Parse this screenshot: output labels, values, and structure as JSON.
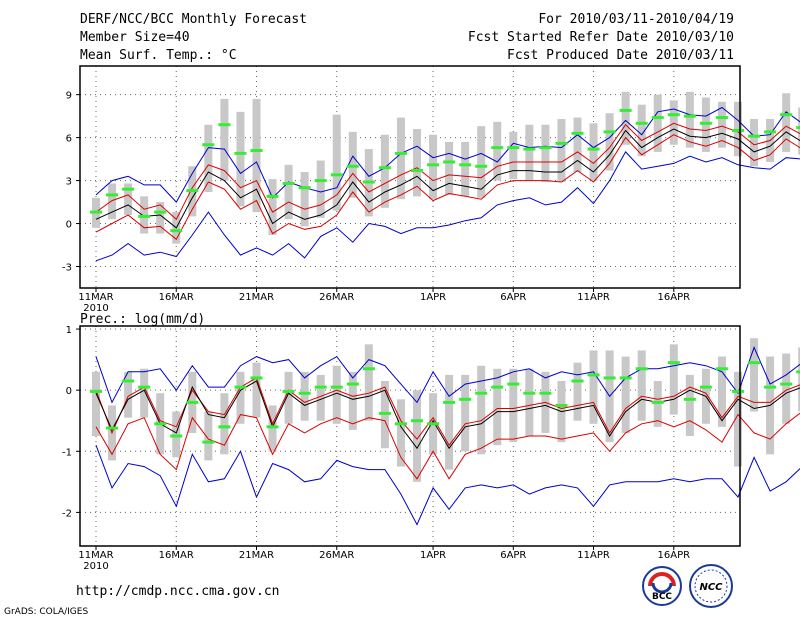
{
  "header": {
    "title": "DERF/NCC/BCC Monthly Forecast",
    "member_size": "Member Size=40",
    "variable1": "Mean Surf. Temp.: °C",
    "variable2": "Prec.: log(mm/d)",
    "forecast_period": "For 2010/03/11-2010/04/19",
    "fcst_started": "Fcst Started Refer Date 2010/03/10",
    "fcst_produced": "Fcst Produced Date 2010/03/11"
  },
  "footer": {
    "url": "http://cmdp.ncc.cma.gov.cn",
    "grads": "GrADS: COLA/IGES",
    "logo_bcc": "BCC",
    "logo_ncc": "NCC"
  },
  "colors": {
    "box": "#c8c8c8",
    "median": "#33ee33",
    "mean": "#000000",
    "spread": "#dd0000",
    "extreme": "#0000cc",
    "grid": "#666666"
  },
  "chart_data": [
    {
      "type": "line",
      "title": "Mean Surf. Temp.: °C",
      "ylim": [
        -4.5,
        11
      ],
      "yticks": [
        -3,
        0,
        3,
        6,
        9
      ],
      "xlabels": [
        "11MAR",
        "16MAR",
        "21MAR",
        "26MAR",
        "1APR",
        "6APR",
        "11APR",
        "16APR"
      ],
      "xlabel_year": "2010",
      "xlabel_days": [
        0,
        5,
        10,
        15,
        21,
        26,
        31,
        36
      ],
      "days": 40,
      "max": [
        2.0,
        3.0,
        3.3,
        2.7,
        2.7,
        1.5,
        3.5,
        5.3,
        5.2,
        3.5,
        4.3,
        1.8,
        2.9,
        2.5,
        2.2,
        2.5,
        4.7,
        3.3,
        3.9,
        4.9,
        5.4,
        4.6,
        4.9,
        4.5,
        4.9,
        4.3,
        5.6,
        5.3,
        5.4,
        5.3,
        6.2,
        5.3,
        6.0,
        7.2,
        6.2,
        7.8,
        8.0,
        7.6,
        7.5,
        8.1,
        7.2,
        6.1,
        6.2,
        7.8,
        7.0
      ],
      "mean": [
        0.3,
        0.8,
        1.3,
        0.5,
        0.6,
        -0.3,
        1.8,
        3.6,
        3.0,
        1.8,
        2.4,
        0.0,
        0.8,
        0.3,
        0.6,
        1.3,
        2.9,
        1.5,
        2.2,
        2.7,
        3.3,
        2.3,
        2.8,
        2.6,
        2.4,
        3.4,
        3.7,
        3.7,
        3.6,
        3.6,
        4.4,
        3.6,
        4.8,
        6.5,
        5.3,
        6.0,
        6.6,
        6.1,
        6.0,
        6.3,
        5.9,
        5.0,
        5.4,
        6.4,
        5.7
      ],
      "upper": [
        0.8,
        1.6,
        2.0,
        1.0,
        1.3,
        0.3,
        2.5,
        4.1,
        3.7,
        2.5,
        3.0,
        0.8,
        1.5,
        1.0,
        1.3,
        2.0,
        3.5,
        2.2,
        2.8,
        3.4,
        3.9,
        3.0,
        3.4,
        3.3,
        3.2,
        4.0,
        4.3,
        4.3,
        4.3,
        4.3,
        5.0,
        4.2,
        5.3,
        6.9,
        5.8,
        6.4,
        7.0,
        6.6,
        6.5,
        6.8,
        6.4,
        5.5,
        5.8,
        6.8,
        6.2
      ],
      "lower": [
        -0.6,
        0.0,
        0.6,
        -0.3,
        -0.2,
        -1.1,
        1.0,
        2.9,
        2.4,
        1.0,
        1.6,
        -0.7,
        0.0,
        -0.4,
        -0.2,
        0.6,
        2.2,
        0.8,
        1.5,
        2.0,
        2.6,
        1.6,
        2.1,
        1.9,
        1.7,
        2.7,
        3.0,
        3.0,
        3.0,
        2.9,
        3.7,
        2.9,
        4.2,
        6.0,
        4.8,
        5.5,
        6.2,
        5.7,
        5.4,
        5.8,
        5.3,
        4.4,
        4.8,
        5.9,
        5.2
      ],
      "min": [
        -2.6,
        -2.2,
        -1.4,
        -2.2,
        -2.0,
        -2.3,
        -0.8,
        0.8,
        -0.8,
        -2.2,
        -1.7,
        -2.2,
        -1.4,
        -2.4,
        -0.9,
        -0.3,
        -1.3,
        0.0,
        -0.2,
        -0.7,
        -0.3,
        -0.3,
        -0.1,
        0.2,
        0.4,
        1.3,
        1.6,
        1.8,
        1.3,
        1.5,
        2.5,
        1.4,
        3.0,
        5.0,
        3.8,
        4.0,
        4.2,
        4.7,
        4.3,
        4.6,
        4.1,
        3.9,
        3.8,
        4.6,
        4.5
      ],
      "median": [
        0.8,
        2.0,
        2.4,
        0.5,
        0.8,
        -0.5,
        2.3,
        5.5,
        6.9,
        4.9,
        5.1,
        1.9,
        2.8,
        2.5,
        3.0,
        3.4,
        4.0,
        2.9,
        3.9,
        4.9,
        3.7,
        4.1,
        4.3,
        4.1,
        4.0,
        5.3,
        5.3,
        5.2,
        5.3,
        5.6,
        6.3,
        5.2,
        6.4,
        7.9,
        7.0,
        7.4,
        7.6,
        7.5,
        7.0,
        7.4,
        6.5,
        6.1,
        6.4,
        7.6,
        6.7
      ],
      "box_low": [
        -0.3,
        0.3,
        0.6,
        -0.7,
        -0.7,
        -1.4,
        0.5,
        2.2,
        3.0,
        1.2,
        0.8,
        -0.8,
        0.3,
        -0.2,
        0.4,
        0.9,
        1.8,
        0.5,
        1.1,
        1.7,
        1.9,
        1.7,
        2.0,
        1.9,
        1.8,
        3.0,
        3.1,
        3.0,
        2.9,
        2.9,
        3.6,
        3.0,
        3.7,
        5.5,
        4.7,
        5.0,
        5.5,
        5.3,
        5.0,
        5.3,
        4.7,
        4.0,
        4.3,
        5.0,
        4.8
      ],
      "box_high": [
        1.8,
        2.8,
        2.8,
        1.9,
        1.5,
        0.8,
        4.0,
        6.9,
        8.7,
        7.8,
        8.7,
        3.1,
        4.1,
        3.6,
        4.4,
        7.6,
        6.4,
        5.2,
        6.2,
        7.4,
        6.6,
        6.2,
        5.7,
        5.7,
        6.8,
        7.1,
        6.4,
        6.9,
        6.9,
        7.3,
        7.4,
        7.0,
        7.7,
        9.2,
        8.3,
        9.0,
        8.6,
        9.2,
        8.8,
        8.5,
        8.5,
        7.3,
        7.3,
        9.1,
        8.1
      ]
    },
    {
      "type": "line",
      "title": "Prec.: log(mm/d)",
      "ylim": [
        -2.55,
        1.05
      ],
      "yticks": [
        -2,
        -1,
        0,
        1
      ],
      "xlabels": [
        "11MAR",
        "16MAR",
        "21MAR",
        "26MAR",
        "1APR",
        "6APR",
        "11APR",
        "16APR"
      ],
      "xlabel_year": "2010",
      "xlabel_days": [
        0,
        5,
        10,
        15,
        21,
        26,
        31,
        36
      ],
      "days": 40,
      "max": [
        0.55,
        -0.2,
        0.3,
        0.3,
        0.35,
        0.0,
        0.4,
        0.05,
        0.05,
        0.4,
        0.55,
        0.45,
        0.5,
        0.2,
        0.4,
        0.55,
        0.2,
        0.5,
        0.4,
        0.1,
        -0.2,
        0.3,
        -0.1,
        0.1,
        0.15,
        0.2,
        0.3,
        0.35,
        0.2,
        0.3,
        0.25,
        0.3,
        -0.1,
        0.2,
        0.35,
        0.35,
        0.4,
        0.45,
        0.4,
        0.3,
        -0.05,
        0.7,
        0.1,
        0.25,
        0.45
      ],
      "upper": [
        0.0,
        -0.7,
        -0.1,
        0.05,
        -0.5,
        -0.6,
        0.0,
        -0.35,
        -0.4,
        0.05,
        0.2,
        -0.55,
        0.0,
        -0.2,
        -0.1,
        0.0,
        -0.1,
        -0.05,
        0.05,
        -0.5,
        -0.8,
        -0.45,
        -0.9,
        -0.55,
        -0.5,
        -0.3,
        -0.3,
        -0.25,
        -0.2,
        -0.3,
        -0.25,
        -0.2,
        -0.7,
        -0.3,
        -0.1,
        -0.15,
        -0.1,
        0.05,
        -0.05,
        -0.45,
        -0.1,
        -0.2,
        -0.2,
        0.0,
        0.1
      ],
      "mean": [
        -0.05,
        -0.65,
        -0.15,
        0.0,
        -0.55,
        -0.7,
        0.05,
        -0.4,
        -0.45,
        0.0,
        0.15,
        -0.6,
        -0.05,
        -0.25,
        -0.15,
        -0.05,
        -0.15,
        -0.1,
        0.0,
        -0.6,
        -0.95,
        -0.5,
        -0.95,
        -0.6,
        -0.55,
        -0.35,
        -0.35,
        -0.3,
        -0.25,
        -0.35,
        -0.3,
        -0.25,
        -0.75,
        -0.35,
        -0.15,
        -0.2,
        -0.15,
        0.0,
        -0.1,
        -0.5,
        -0.15,
        -0.3,
        -0.25,
        -0.05,
        0.05
      ],
      "lower": [
        -0.6,
        -1.05,
        -0.55,
        -0.45,
        -1.05,
        -1.3,
        -0.45,
        -0.8,
        -0.9,
        -0.4,
        -0.45,
        -1.05,
        -0.55,
        -0.7,
        -0.55,
        -0.45,
        -0.55,
        -0.45,
        -0.5,
        -1.1,
        -1.45,
        -1.0,
        -1.45,
        -1.05,
        -0.95,
        -0.8,
        -0.8,
        -0.75,
        -0.75,
        -0.8,
        -0.75,
        -0.7,
        -1.0,
        -0.7,
        -0.55,
        -0.5,
        -0.6,
        -0.5,
        -0.65,
        -0.85,
        -0.4,
        -0.7,
        -0.8,
        -0.55,
        -0.35
      ],
      "min": [
        -0.9,
        -1.6,
        -1.2,
        -1.25,
        -1.4,
        -1.9,
        -1.05,
        -1.5,
        -1.45,
        -1.0,
        -1.75,
        -1.2,
        -1.3,
        -1.5,
        -1.45,
        -1.15,
        -1.25,
        -1.3,
        -1.3,
        -1.7,
        -2.2,
        -1.6,
        -1.95,
        -1.6,
        -1.55,
        -1.6,
        -1.55,
        -1.7,
        -1.6,
        -1.55,
        -1.6,
        -1.9,
        -1.55,
        -1.5,
        -1.5,
        -1.5,
        -1.45,
        -1.5,
        -1.45,
        -1.45,
        -1.75,
        -1.1,
        -1.65,
        -1.5,
        -1.25
      ],
      "median": [
        -0.02,
        -0.62,
        0.15,
        0.05,
        -0.55,
        -0.75,
        -0.2,
        -0.85,
        -0.6,
        0.05,
        0.2,
        -0.6,
        -0.02,
        -0.05,
        0.05,
        0.05,
        0.1,
        0.35,
        -0.38,
        -0.55,
        -0.5,
        -0.55,
        -0.2,
        -0.15,
        -0.05,
        0.05,
        0.1,
        -0.05,
        -0.05,
        -0.25,
        0.15,
        0.25,
        0.2,
        0.2,
        0.35,
        -0.2,
        0.45,
        -0.15,
        0.05,
        0.35,
        -0.02,
        0.45,
        0.05,
        0.1,
        0.3
      ],
      "box_low": [
        -0.75,
        -1.15,
        -0.45,
        -0.45,
        -1.05,
        -1.1,
        -0.7,
        -1.15,
        -1.05,
        -0.55,
        -0.45,
        -1.0,
        -0.55,
        -0.5,
        -0.5,
        -0.55,
        -0.65,
        -0.5,
        -0.95,
        -1.25,
        -1.5,
        -1.05,
        -1.3,
        -1.0,
        -1.05,
        -0.9,
        -0.85,
        -0.75,
        -0.7,
        -0.85,
        -0.5,
        -0.55,
        -0.85,
        -0.7,
        -0.5,
        -0.6,
        -0.4,
        -0.75,
        -0.55,
        -0.6,
        -1.25,
        -0.35,
        -1.05,
        -0.55,
        -0.35
      ],
      "box_high": [
        0.3,
        -0.25,
        0.3,
        0.35,
        -0.05,
        -0.35,
        0.3,
        -0.35,
        -0.05,
        0.3,
        0.45,
        -0.25,
        0.3,
        0.3,
        0.25,
        0.4,
        0.3,
        0.75,
        0.15,
        -0.15,
        0.0,
        -0.05,
        0.25,
        0.25,
        0.4,
        0.35,
        0.35,
        0.35,
        0.3,
        0.15,
        0.45,
        0.65,
        0.65,
        0.55,
        0.65,
        0.15,
        0.75,
        0.25,
        0.35,
        0.55,
        0.3,
        0.85,
        0.55,
        0.6,
        0.7
      ]
    }
  ]
}
